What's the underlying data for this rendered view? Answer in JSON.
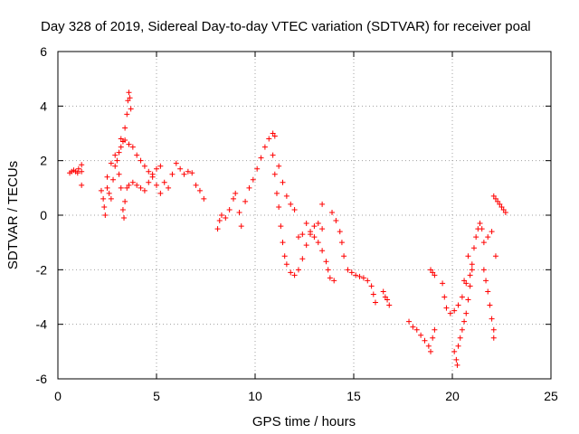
{
  "chart_data": {
    "type": "scatter",
    "title": "Day 328 of 2019, Sidereal Day-to-day VTEC variation (SDTVAR) for receiver poal",
    "xlabel": "GPS time / hours",
    "ylabel": "SDTVAR / TECUs",
    "xlim": [
      0,
      25
    ],
    "ylim": [
      -6,
      6
    ],
    "xticks": [
      0,
      5,
      10,
      15,
      20,
      25
    ],
    "xtick_labels": [
      "0",
      "5",
      "10",
      "15",
      "20",
      "25"
    ],
    "yticks": [
      -6,
      -4,
      -2,
      0,
      2,
      4,
      6
    ],
    "ytick_labels": [
      "-6",
      "-4",
      "-2",
      "0",
      "2",
      "4",
      "6"
    ],
    "grid": true,
    "marker": "+",
    "color": "#ff0000",
    "series": [
      {
        "name": "SDTVAR",
        "points": [
          [
            0.6,
            1.55
          ],
          [
            0.7,
            1.6
          ],
          [
            0.8,
            1.65
          ],
          [
            0.9,
            1.6
          ],
          [
            1.0,
            1.55
          ],
          [
            1.05,
            1.7
          ],
          [
            1.2,
            1.6
          ],
          [
            1.2,
            1.85
          ],
          [
            1.2,
            1.1
          ],
          [
            2.2,
            0.9
          ],
          [
            2.3,
            0.6
          ],
          [
            2.35,
            0.3
          ],
          [
            2.4,
            0.0
          ],
          [
            2.5,
            1.0
          ],
          [
            2.6,
            0.8
          ],
          [
            2.7,
            0.6
          ],
          [
            2.8,
            1.3
          ],
          [
            2.9,
            1.8
          ],
          [
            3.0,
            2.0
          ],
          [
            3.1,
            1.5
          ],
          [
            3.2,
            1.0
          ],
          [
            3.3,
            0.2
          ],
          [
            3.35,
            -0.1
          ],
          [
            3.4,
            0.5
          ],
          [
            3.5,
            1.0
          ],
          [
            3.6,
            1.1
          ],
          [
            2.5,
            1.4
          ],
          [
            2.7,
            1.9
          ],
          [
            2.9,
            2.2
          ],
          [
            3.1,
            2.3
          ],
          [
            3.2,
            2.5
          ],
          [
            3.3,
            2.7
          ],
          [
            3.4,
            3.2
          ],
          [
            3.5,
            3.7
          ],
          [
            3.55,
            4.2
          ],
          [
            3.6,
            4.5
          ],
          [
            3.65,
            4.3
          ],
          [
            3.7,
            3.9
          ],
          [
            3.2,
            2.8
          ],
          [
            3.4,
            2.75
          ],
          [
            3.6,
            2.6
          ],
          [
            3.8,
            2.5
          ],
          [
            4.0,
            2.2
          ],
          [
            4.2,
            2.0
          ],
          [
            4.4,
            1.8
          ],
          [
            4.6,
            1.6
          ],
          [
            4.8,
            1.4
          ],
          [
            5.0,
            1.1
          ],
          [
            5.2,
            0.8
          ],
          [
            3.8,
            1.2
          ],
          [
            4.0,
            1.1
          ],
          [
            4.2,
            1.0
          ],
          [
            4.4,
            0.9
          ],
          [
            4.6,
            1.2
          ],
          [
            4.8,
            1.5
          ],
          [
            5.0,
            1.7
          ],
          [
            5.2,
            1.8
          ],
          [
            5.4,
            1.2
          ],
          [
            5.6,
            1.0
          ],
          [
            5.8,
            1.5
          ],
          [
            6.0,
            1.9
          ],
          [
            6.2,
            1.7
          ],
          [
            6.4,
            1.5
          ],
          [
            6.6,
            1.6
          ],
          [
            6.8,
            1.55
          ],
          [
            7.0,
            1.1
          ],
          [
            7.2,
            0.9
          ],
          [
            7.4,
            0.6
          ],
          [
            8.1,
            -0.5
          ],
          [
            8.2,
            -0.2
          ],
          [
            8.3,
            0.0
          ],
          [
            8.5,
            -0.1
          ],
          [
            8.7,
            0.2
          ],
          [
            8.9,
            0.6
          ],
          [
            9.0,
            0.8
          ],
          [
            9.2,
            0.1
          ],
          [
            9.3,
            -0.4
          ],
          [
            9.5,
            0.5
          ],
          [
            9.7,
            1.0
          ],
          [
            9.9,
            1.3
          ],
          [
            10.1,
            1.7
          ],
          [
            10.3,
            2.1
          ],
          [
            10.5,
            2.5
          ],
          [
            10.7,
            2.8
          ],
          [
            10.9,
            3.0
          ],
          [
            11.0,
            2.9
          ],
          [
            10.9,
            2.2
          ],
          [
            11.0,
            1.5
          ],
          [
            11.1,
            0.8
          ],
          [
            11.2,
            0.3
          ],
          [
            11.3,
            -0.4
          ],
          [
            11.4,
            -1.0
          ],
          [
            11.5,
            -1.5
          ],
          [
            11.6,
            -1.8
          ],
          [
            11.8,
            -2.1
          ],
          [
            12.0,
            -2.2
          ],
          [
            12.2,
            -2.0
          ],
          [
            12.4,
            -1.6
          ],
          [
            12.6,
            -1.1
          ],
          [
            12.8,
            -0.7
          ],
          [
            13.0,
            -0.4
          ],
          [
            13.2,
            -0.3
          ],
          [
            13.4,
            -0.5
          ],
          [
            11.2,
            1.8
          ],
          [
            11.4,
            1.2
          ],
          [
            11.6,
            0.7
          ],
          [
            11.8,
            0.4
          ],
          [
            12.0,
            0.2
          ],
          [
            12.2,
            -0.8
          ],
          [
            12.4,
            -0.7
          ],
          [
            12.6,
            -0.3
          ],
          [
            12.8,
            -0.6
          ],
          [
            13.0,
            -0.8
          ],
          [
            13.2,
            -1.0
          ],
          [
            13.4,
            -1.3
          ],
          [
            13.6,
            -1.7
          ],
          [
            13.7,
            -2.0
          ],
          [
            13.8,
            -2.3
          ],
          [
            13.4,
            0.4
          ],
          [
            14.0,
            -2.4
          ],
          [
            13.9,
            0.1
          ],
          [
            14.1,
            -0.2
          ],
          [
            14.3,
            -0.6
          ],
          [
            14.4,
            -1.0
          ],
          [
            14.5,
            -1.5
          ],
          [
            14.7,
            -2.0
          ],
          [
            14.9,
            -2.1
          ],
          [
            15.1,
            -2.2
          ],
          [
            15.3,
            -2.25
          ],
          [
            15.5,
            -2.3
          ],
          [
            15.7,
            -2.4
          ],
          [
            15.9,
            -2.6
          ],
          [
            16.0,
            -2.9
          ],
          [
            16.1,
            -3.2
          ],
          [
            16.5,
            -2.8
          ],
          [
            16.6,
            -3.0
          ],
          [
            16.7,
            -3.1
          ],
          [
            16.8,
            -3.3
          ],
          [
            17.8,
            -3.9
          ],
          [
            18.0,
            -4.1
          ],
          [
            18.2,
            -4.2
          ],
          [
            18.4,
            -4.4
          ],
          [
            18.6,
            -4.6
          ],
          [
            18.8,
            -4.8
          ],
          [
            18.9,
            -5.0
          ],
          [
            19.0,
            -4.5
          ],
          [
            19.1,
            -4.2
          ],
          [
            18.9,
            -2.0
          ],
          [
            19.0,
            -2.1
          ],
          [
            19.1,
            -2.2
          ],
          [
            19.5,
            -2.5
          ],
          [
            19.6,
            -3.0
          ],
          [
            19.7,
            -3.4
          ],
          [
            19.9,
            -3.6
          ],
          [
            20.1,
            -3.5
          ],
          [
            20.3,
            -3.3
          ],
          [
            20.5,
            -3.0
          ],
          [
            20.7,
            -2.5
          ],
          [
            20.9,
            -2.2
          ],
          [
            21.0,
            -1.8
          ],
          [
            21.1,
            -1.2
          ],
          [
            21.2,
            -0.8
          ],
          [
            21.3,
            -0.5
          ],
          [
            21.4,
            -0.3
          ],
          [
            21.5,
            -0.5
          ],
          [
            21.6,
            -1.0
          ],
          [
            21.8,
            -0.8
          ],
          [
            22.0,
            -0.6
          ],
          [
            20.1,
            -5.0
          ],
          [
            20.2,
            -5.3
          ],
          [
            20.25,
            -5.5
          ],
          [
            20.3,
            -4.8
          ],
          [
            20.4,
            -4.5
          ],
          [
            20.5,
            -4.2
          ],
          [
            20.6,
            -3.9
          ],
          [
            20.7,
            -3.6
          ],
          [
            20.8,
            -3.1
          ],
          [
            20.9,
            -2.6
          ],
          [
            21.0,
            -2.0
          ],
          [
            20.8,
            -1.5
          ],
          [
            20.6,
            -2.4
          ],
          [
            21.6,
            -2.0
          ],
          [
            21.7,
            -2.4
          ],
          [
            21.8,
            -2.8
          ],
          [
            21.9,
            -3.3
          ],
          [
            22.0,
            -3.8
          ],
          [
            22.1,
            -4.2
          ],
          [
            22.1,
            -4.5
          ],
          [
            22.2,
            -1.5
          ],
          [
            22.1,
            0.7
          ],
          [
            22.2,
            0.6
          ],
          [
            22.3,
            0.5
          ],
          [
            22.4,
            0.4
          ],
          [
            22.5,
            0.3
          ],
          [
            22.6,
            0.2
          ],
          [
            22.7,
            0.1
          ]
        ]
      }
    ]
  }
}
